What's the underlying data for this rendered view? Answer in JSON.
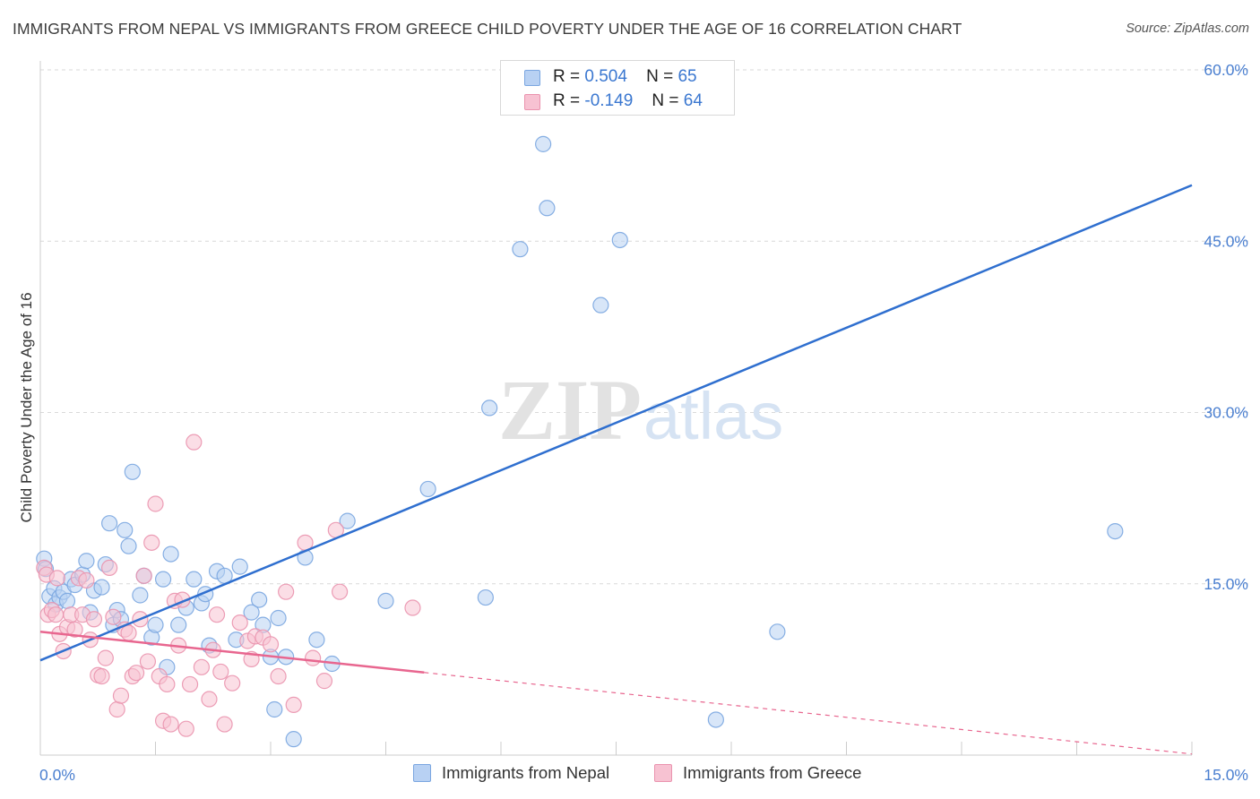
{
  "title": "IMMIGRANTS FROM NEPAL VS IMMIGRANTS FROM GREECE CHILD POVERTY UNDER THE AGE OF 16 CORRELATION CHART",
  "source": "Source: ZipAtlas.com",
  "watermark": {
    "zip": "ZIP",
    "atlas": "atlas"
  },
  "colors": {
    "nepal_fill": "#b8d1f3",
    "nepal_stroke": "#7aa6e0",
    "nepal_line": "#2f6fcf",
    "greece_fill": "#f7c2d2",
    "greece_stroke": "#ea93ae",
    "greece_line": "#e8668f",
    "axis_label": "#4a7fd0",
    "grid": "#d9d9d9"
  },
  "legend_top": {
    "rows": [
      {
        "r_label": "R =",
        "r_value": "0.504",
        "n_label": "N =",
        "n_value": "65"
      },
      {
        "r_label": "R =",
        "r_value": "-0.149",
        "n_label": "N =",
        "n_value": "64"
      }
    ]
  },
  "legend_bottom": {
    "nepal": "Immigrants from Nepal",
    "greece": "Immigrants from Greece"
  },
  "chart_data": {
    "type": "scatter",
    "title": "IMMIGRANTS FROM NEPAL VS IMMIGRANTS FROM GREECE CHILD POVERTY UNDER THE AGE OF 16 CORRELATION CHART",
    "xlabel": "",
    "ylabel": "Child Poverty Under the Age of 16",
    "xlim": [
      0,
      15
    ],
    "ylim": [
      0,
      60
    ],
    "x_tick_labels": [
      "0.0%",
      "15.0%"
    ],
    "y_ticks": [
      15,
      30,
      45,
      60
    ],
    "y_tick_labels": [
      "15.0%",
      "30.0%",
      "45.0%",
      "60.0%"
    ],
    "grid": true,
    "legend_position": "bottom",
    "series": [
      {
        "name": "Immigrants from Nepal",
        "r": 0.504,
        "n": 65,
        "trend": {
          "x": [
            0,
            15
          ],
          "y": [
            8.3,
            49.9
          ],
          "dashed_from": null
        },
        "points": [
          [
            0.05,
            17.2
          ],
          [
            0.07,
            16.3
          ],
          [
            0.12,
            13.9
          ],
          [
            0.18,
            14.6
          ],
          [
            0.2,
            13.2
          ],
          [
            0.25,
            13.8
          ],
          [
            0.3,
            14.3
          ],
          [
            0.35,
            13.5
          ],
          [
            0.4,
            15.4
          ],
          [
            0.45,
            14.9
          ],
          [
            0.55,
            15.8
          ],
          [
            0.6,
            17.0
          ],
          [
            0.65,
            12.5
          ],
          [
            0.7,
            14.4
          ],
          [
            0.8,
            14.7
          ],
          [
            0.85,
            16.7
          ],
          [
            0.9,
            20.3
          ],
          [
            0.95,
            11.4
          ],
          [
            1.0,
            12.7
          ],
          [
            1.05,
            11.9
          ],
          [
            1.1,
            19.7
          ],
          [
            1.15,
            18.3
          ],
          [
            1.2,
            24.8
          ],
          [
            1.3,
            14.0
          ],
          [
            1.35,
            15.7
          ],
          [
            1.45,
            10.3
          ],
          [
            1.5,
            11.4
          ],
          [
            1.6,
            15.4
          ],
          [
            1.65,
            7.7
          ],
          [
            1.7,
            17.6
          ],
          [
            1.8,
            11.4
          ],
          [
            1.9,
            12.9
          ],
          [
            2.0,
            15.4
          ],
          [
            2.1,
            13.3
          ],
          [
            2.15,
            14.1
          ],
          [
            2.2,
            9.6
          ],
          [
            2.3,
            16.1
          ],
          [
            2.4,
            15.7
          ],
          [
            2.55,
            10.1
          ],
          [
            2.6,
            16.5
          ],
          [
            2.75,
            12.5
          ],
          [
            2.85,
            13.6
          ],
          [
            2.9,
            11.4
          ],
          [
            3.0,
            8.6
          ],
          [
            3.05,
            4.0
          ],
          [
            3.1,
            12.0
          ],
          [
            3.2,
            8.6
          ],
          [
            3.3,
            1.4
          ],
          [
            3.45,
            17.3
          ],
          [
            3.6,
            10.1
          ],
          [
            3.8,
            8.0
          ],
          [
            4.0,
            20.5
          ],
          [
            4.5,
            13.5
          ],
          [
            5.05,
            23.3
          ],
          [
            5.8,
            13.8
          ],
          [
            5.85,
            30.4
          ],
          [
            6.25,
            44.3
          ],
          [
            6.45,
            57.5
          ],
          [
            6.55,
            53.5
          ],
          [
            6.6,
            47.9
          ],
          [
            7.3,
            39.4
          ],
          [
            7.55,
            45.1
          ],
          [
            8.8,
            3.1
          ],
          [
            9.6,
            10.8
          ],
          [
            14.0,
            19.6
          ]
        ]
      },
      {
        "name": "Immigrants from Greece",
        "r": -0.149,
        "n": 64,
        "trend": {
          "x": [
            0,
            15
          ],
          "y": [
            10.8,
            0.1
          ],
          "dashed_from": 5.0
        },
        "points": [
          [
            0.05,
            16.4
          ],
          [
            0.08,
            15.8
          ],
          [
            0.1,
            12.3
          ],
          [
            0.15,
            12.7
          ],
          [
            0.2,
            12.3
          ],
          [
            0.22,
            15.5
          ],
          [
            0.25,
            10.6
          ],
          [
            0.3,
            9.1
          ],
          [
            0.35,
            11.2
          ],
          [
            0.4,
            12.3
          ],
          [
            0.45,
            11.0
          ],
          [
            0.5,
            15.5
          ],
          [
            0.55,
            12.3
          ],
          [
            0.6,
            15.3
          ],
          [
            0.65,
            10.1
          ],
          [
            0.7,
            11.9
          ],
          [
            0.75,
            7.0
          ],
          [
            0.8,
            6.9
          ],
          [
            0.85,
            8.5
          ],
          [
            0.9,
            16.4
          ],
          [
            0.95,
            12.1
          ],
          [
            1.0,
            4.0
          ],
          [
            1.05,
            5.2
          ],
          [
            1.1,
            11.0
          ],
          [
            1.15,
            10.7
          ],
          [
            1.2,
            6.9
          ],
          [
            1.25,
            7.2
          ],
          [
            1.3,
            11.9
          ],
          [
            1.35,
            15.7
          ],
          [
            1.4,
            8.2
          ],
          [
            1.45,
            18.6
          ],
          [
            1.5,
            22.0
          ],
          [
            1.55,
            6.9
          ],
          [
            1.6,
            3.0
          ],
          [
            1.65,
            6.2
          ],
          [
            1.7,
            2.7
          ],
          [
            1.75,
            13.5
          ],
          [
            1.8,
            9.6
          ],
          [
            1.85,
            13.6
          ],
          [
            1.9,
            2.3
          ],
          [
            1.95,
            6.2
          ],
          [
            2.0,
            27.4
          ],
          [
            2.1,
            7.7
          ],
          [
            2.2,
            4.9
          ],
          [
            2.25,
            9.2
          ],
          [
            2.3,
            12.3
          ],
          [
            2.35,
            7.3
          ],
          [
            2.4,
            2.7
          ],
          [
            2.5,
            6.3
          ],
          [
            2.6,
            11.6
          ],
          [
            2.7,
            10.0
          ],
          [
            2.75,
            8.4
          ],
          [
            2.8,
            10.4
          ],
          [
            2.9,
            10.3
          ],
          [
            3.0,
            9.7
          ],
          [
            3.1,
            6.9
          ],
          [
            3.2,
            14.3
          ],
          [
            3.3,
            4.4
          ],
          [
            3.45,
            18.6
          ],
          [
            3.55,
            8.5
          ],
          [
            3.7,
            6.5
          ],
          [
            3.85,
            19.7
          ],
          [
            3.9,
            14.3
          ],
          [
            4.85,
            12.9
          ]
        ]
      }
    ]
  }
}
